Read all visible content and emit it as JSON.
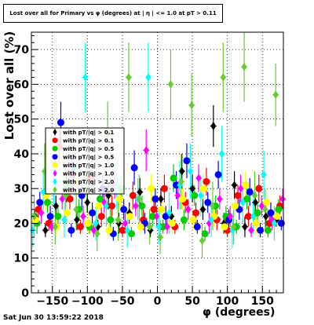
{
  "title": "Lost over all for Primary vs φ (degrees) at | η | <= 1.0 at pT > 0.11",
  "xlabel": "φ (degrees)",
  "ylabel": "Lost over all (%)",
  "datestamp": "Sat Jun 30 13:59:22 2018",
  "colors": {
    "black": "#000000",
    "red": "#ff0000",
    "green": "#00cc00",
    "blue": "#0000ff",
    "yellow": "#ffff00",
    "magenta": "#ff00ff",
    "cyan": "#00ffff",
    "lightgreen": "#66cc33"
  },
  "chart_data": {
    "type": "scatter",
    "xlim": [
      -180,
      180
    ],
    "ylim": [
      0,
      75
    ],
    "xticks": [
      -150,
      -100,
      -50,
      0,
      50,
      100,
      150
    ],
    "yticks": [
      0,
      10,
      20,
      30,
      40,
      50,
      60,
      70
    ],
    "grid": true,
    "legend_position": "left-middle",
    "series": [
      {
        "name": "with pT/|q| > 0.1",
        "color": "#000000",
        "marker": "diamond",
        "x": [
          -175,
          -160,
          -145,
          -130,
          -115,
          -100,
          -85,
          -70,
          -55,
          -40,
          -25,
          -10,
          5,
          20,
          35,
          50,
          65,
          80,
          95,
          110,
          125,
          140,
          155,
          170
        ],
        "y": [
          22,
          18,
          25,
          30,
          21,
          26,
          19,
          28,
          20,
          23,
          29,
          18,
          27,
          22,
          35,
          30,
          24,
          48,
          20,
          31,
          19,
          26,
          22,
          21
        ],
        "err": [
          2,
          2,
          3,
          4,
          3,
          3,
          2,
          4,
          3,
          3,
          4,
          2,
          3,
          3,
          5,
          4,
          3,
          6,
          3,
          4,
          3,
          3,
          3,
          2
        ]
      },
      {
        "name": "with pT/|q| > 0.1",
        "color": "#ff0000",
        "marker": "circle",
        "x": [
          -170,
          -155,
          -140,
          -125,
          -110,
          -95,
          -80,
          -65,
          -50,
          -35,
          -20,
          -5,
          10,
          25,
          40,
          55,
          70,
          85,
          100,
          115,
          130,
          145,
          160,
          175
        ],
        "y": [
          24,
          20,
          42,
          27,
          19,
          33,
          22,
          25,
          18,
          28,
          21,
          24,
          30,
          19,
          26,
          23,
          32,
          21,
          18,
          28,
          22,
          30,
          20,
          25
        ],
        "err": [
          3,
          2,
          5,
          3,
          2,
          4,
          3,
          3,
          2,
          4,
          3,
          3,
          4,
          2,
          3,
          3,
          4,
          3,
          2,
          3,
          3,
          4,
          2,
          3
        ]
      },
      {
        "name": "with pT/|q| > 0.5",
        "color": "#00cc00",
        "marker": "circle",
        "x": [
          -172,
          -157,
          -142,
          -127,
          -112,
          -97,
          -82,
          -67,
          -52,
          -37,
          -22,
          -7,
          8,
          23,
          38,
          53,
          68,
          83,
          98,
          113,
          128,
          143,
          158,
          173
        ],
        "y": [
          20,
          26,
          22,
          31,
          24,
          19,
          27,
          21,
          30,
          17,
          25,
          22,
          19,
          33,
          21,
          28,
          17,
          25,
          22,
          19,
          27,
          23,
          18,
          24
        ],
        "err": [
          3,
          3,
          3,
          4,
          3,
          2,
          3,
          3,
          4,
          2,
          3,
          3,
          2,
          4,
          3,
          3,
          2,
          3,
          3,
          2,
          3,
          3,
          2,
          3
        ]
      },
      {
        "name": "with pT/|q| > 0.5",
        "color": "#0000ff",
        "marker": "circle",
        "x": [
          -168,
          -153,
          -138,
          -123,
          -108,
          -93,
          -78,
          -63,
          -48,
          -33,
          -18,
          -3,
          12,
          27,
          42,
          57,
          72,
          87,
          102,
          117,
          132,
          147,
          162,
          177
        ],
        "y": [
          26,
          22,
          49,
          18,
          28,
          23,
          30,
          17,
          24,
          36,
          20,
          27,
          22,
          31,
          38,
          19,
          26,
          34,
          21,
          24,
          29,
          18,
          23,
          20
        ],
        "err": [
          3,
          3,
          6,
          2,
          4,
          3,
          4,
          2,
          3,
          5,
          3,
          3,
          3,
          4,
          5,
          2,
          3,
          4,
          3,
          3,
          4,
          2,
          3,
          2
        ]
      },
      {
        "name": "with pT/|q| > 1.0",
        "color": "#ffff00",
        "marker": "circle",
        "x": [
          -174,
          -159,
          -144,
          -129,
          -114,
          -99,
          -84,
          -69,
          -54,
          -39,
          -24,
          -9,
          6,
          21,
          36,
          51,
          66,
          81,
          96,
          111,
          126,
          141,
          156,
          171
        ],
        "y": [
          21,
          28,
          19,
          23,
          32,
          20,
          25,
          18,
          27,
          22,
          19,
          30,
          24,
          20,
          27,
          21,
          30,
          22,
          19,
          25,
          31,
          20,
          26,
          22
        ],
        "err": [
          3,
          4,
          2,
          3,
          4,
          3,
          3,
          2,
          3,
          3,
          2,
          4,
          3,
          3,
          3,
          3,
          4,
          3,
          2,
          3,
          4,
          3,
          3,
          3
        ]
      },
      {
        "name": "with pT/|q| > 1.0",
        "color": "#ff00ff",
        "marker": "diamond",
        "x": [
          -166,
          -151,
          -136,
          -121,
          -106,
          -91,
          -76,
          -61,
          -46,
          -31,
          -16,
          -1,
          14,
          29,
          44,
          59,
          74,
          89,
          104,
          119,
          134,
          149,
          164,
          179
        ],
        "y": [
          23,
          19,
          27,
          34,
          22,
          18,
          26,
          31,
          20,
          25,
          41,
          22,
          19,
          28,
          24,
          33,
          20,
          27,
          22,
          30,
          18,
          25,
          21,
          27
        ],
        "err": [
          3,
          2,
          3,
          5,
          3,
          2,
          3,
          4,
          3,
          3,
          6,
          3,
          2,
          4,
          3,
          4,
          3,
          3,
          3,
          4,
          2,
          3,
          3,
          3
        ]
      },
      {
        "name": "with pT/|q| > 2.0",
        "color": "#00ffff",
        "marker": "diamond",
        "x": [
          -178,
          -163,
          -148,
          -133,
          -118,
          -103,
          -88,
          -73,
          -58,
          -43,
          -28,
          -13,
          2,
          17,
          32,
          47,
          62,
          77,
          92,
          107,
          122,
          137,
          152,
          167
        ],
        "y": [
          18,
          29,
          32,
          21,
          36,
          62,
          20,
          25,
          31,
          18,
          27,
          62,
          19,
          23,
          31,
          35,
          28,
          21,
          40,
          18,
          26,
          22,
          34,
          20
        ],
        "err": [
          5,
          6,
          7,
          5,
          8,
          10,
          5,
          6,
          7,
          5,
          6,
          10,
          5,
          6,
          7,
          8,
          6,
          5,
          8,
          5,
          6,
          5,
          7,
          5
        ]
      },
      {
        "name": "with pT/|q| > 2.0",
        "color": "#66cc33",
        "marker": "diamond",
        "x": [
          -176,
          -161,
          -146,
          -131,
          -116,
          -101,
          -86,
          -71,
          -56,
          -41,
          -26,
          -11,
          4,
          19,
          34,
          49,
          64,
          79,
          94,
          109,
          124,
          139,
          154,
          169
        ],
        "y": [
          22,
          35,
          19,
          28,
          24,
          30,
          17,
          46,
          21,
          62,
          27,
          19,
          16,
          60,
          32,
          54,
          15,
          25,
          62,
          19,
          65,
          28,
          24,
          57
        ],
        "err": [
          6,
          8,
          5,
          7,
          6,
          7,
          5,
          9,
          6,
          10,
          7,
          5,
          5,
          10,
          8,
          9,
          5,
          7,
          10,
          5,
          10,
          7,
          6,
          9
        ]
      }
    ]
  }
}
